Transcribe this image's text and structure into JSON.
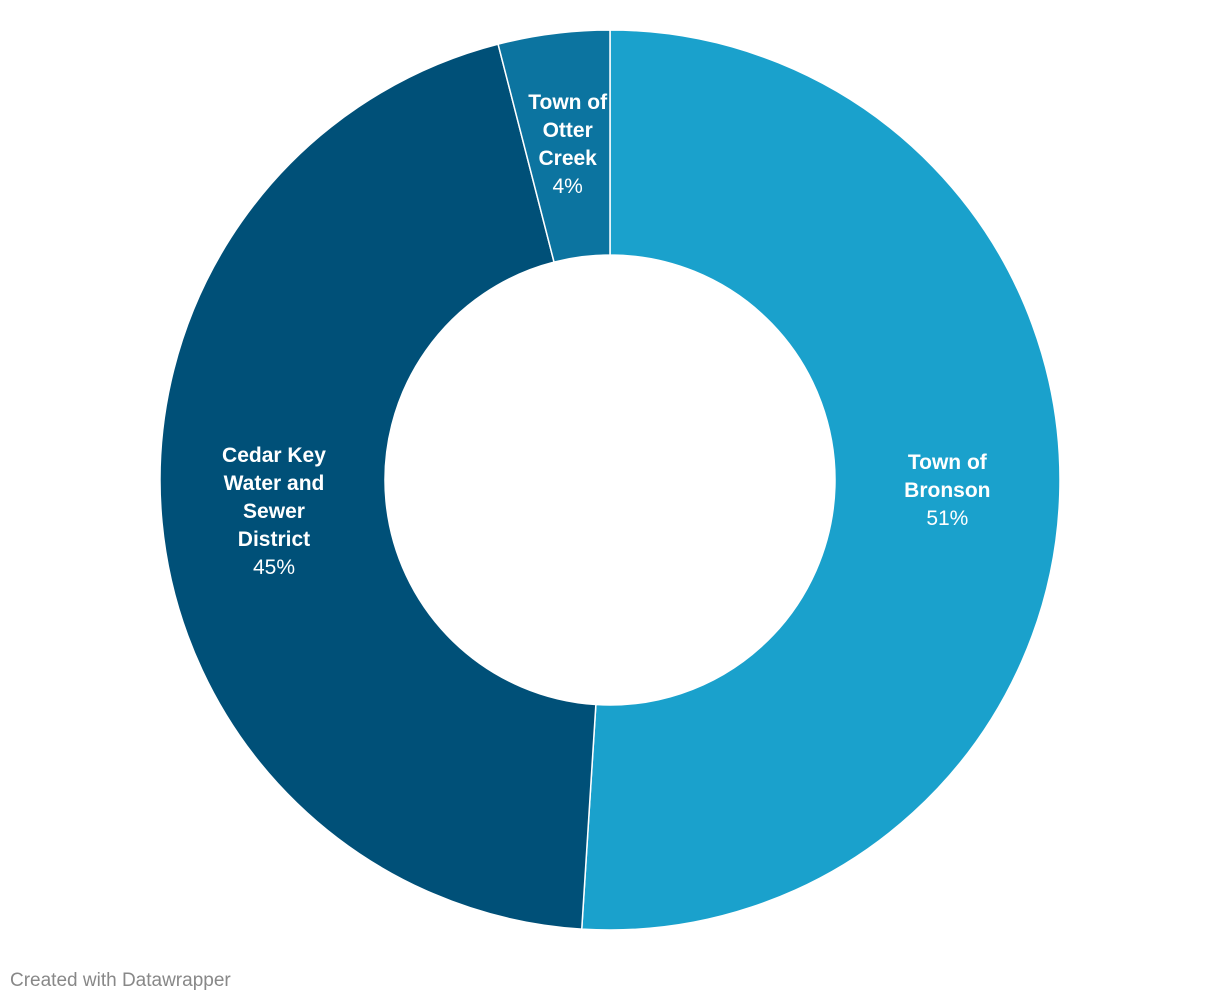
{
  "chart_data": {
    "type": "donut",
    "categories": [
      "Town of Bronson",
      "Cedar Key Water and Sewer District",
      "Town of Otter Creek"
    ],
    "values": [
      51,
      45,
      4
    ],
    "value_labels": [
      "51%",
      "45%",
      "4%"
    ],
    "colors": [
      "#1aa1cc",
      "#005078",
      "#0c74a0"
    ],
    "footer": "Created with Datawrapper"
  }
}
